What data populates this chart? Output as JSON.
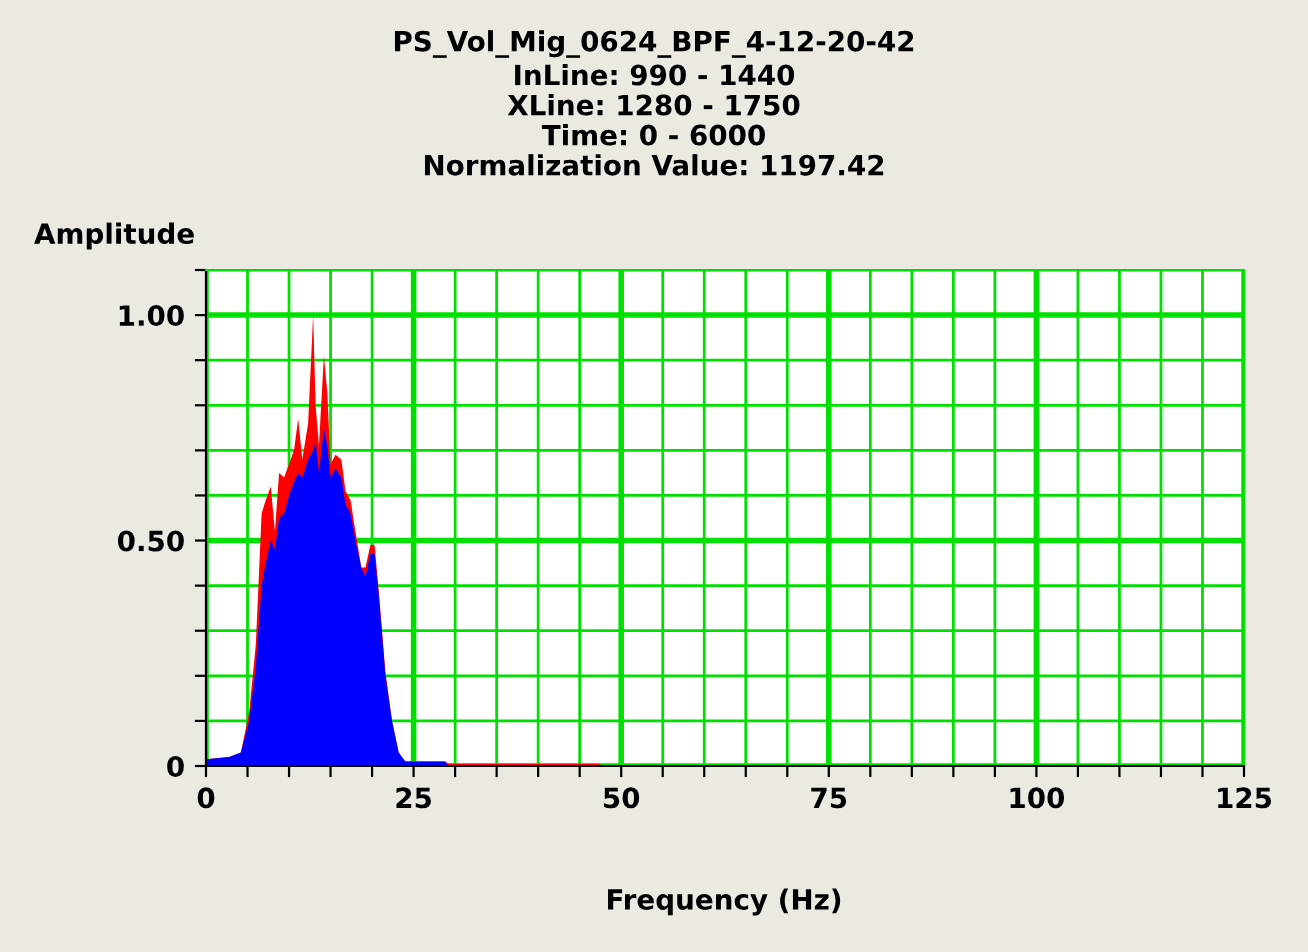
{
  "chart_data": {
    "type": "area",
    "title": "PS_Vol_Mig_0624_BPF_4-12-20-42",
    "subtitle": "InLine: 990 - 1440\nXLine: 1280 - 1750\nTime: 0 - 6000\nNormalization Value: 1197.42",
    "xlabel": "Frequency (Hz)",
    "ylabel": "Amplitude",
    "series": [
      {
        "color": "#ff0000",
        "x": [
          0,
          2.8,
          4.2,
          5.2,
          6.0,
          6.7,
          7.2,
          7.8,
          8.3,
          8.8,
          9.4,
          10.0,
          10.6,
          11.1,
          11.6,
          12.3,
          12.9,
          13.2,
          13.6,
          14.2,
          14.6,
          15.0,
          15.6,
          16.3,
          16.8,
          17.4,
          18.0,
          18.7,
          19.2,
          19.8,
          20.3,
          20.8,
          21.6,
          22.4,
          23.2,
          24.0,
          28.8,
          29.2,
          47.3,
          47.7
        ],
        "values": [
          0.015,
          0.02,
          0.03,
          0.12,
          0.27,
          0.56,
          0.59,
          0.62,
          0.52,
          0.65,
          0.64,
          0.67,
          0.7,
          0.77,
          0.68,
          0.76,
          1.0,
          0.8,
          0.71,
          0.91,
          0.83,
          0.67,
          0.69,
          0.68,
          0.61,
          0.59,
          0.52,
          0.44,
          0.44,
          0.49,
          0.49,
          0.39,
          0.21,
          0.1,
          0.03,
          0.01,
          0.01,
          0.005,
          0.005,
          0
        ]
      },
      {
        "color": "#0000ff",
        "x": [
          0,
          2.8,
          4.2,
          5.2,
          6.0,
          6.7,
          7.2,
          7.8,
          8.3,
          8.8,
          9.4,
          10.0,
          10.6,
          11.1,
          11.6,
          12.3,
          12.9,
          13.2,
          13.6,
          14.2,
          14.6,
          15.0,
          15.6,
          16.3,
          16.8,
          17.4,
          18.0,
          18.7,
          19.2,
          19.8,
          20.3,
          20.8,
          21.6,
          22.4,
          23.2,
          24.0,
          28.8,
          29.2
        ],
        "values": [
          0.015,
          0.02,
          0.03,
          0.1,
          0.22,
          0.4,
          0.45,
          0.5,
          0.48,
          0.55,
          0.56,
          0.6,
          0.63,
          0.65,
          0.64,
          0.68,
          0.7,
          0.72,
          0.65,
          0.75,
          0.71,
          0.64,
          0.66,
          0.64,
          0.58,
          0.56,
          0.5,
          0.44,
          0.42,
          0.47,
          0.47,
          0.38,
          0.2,
          0.1,
          0.03,
          0.01,
          0.01,
          0
        ]
      }
    ],
    "xlim": [
      0,
      125
    ],
    "xticks": [
      0,
      {
        "value": 5,
        "label": null
      },
      {
        "value": 10,
        "label": null
      },
      {
        "value": 15,
        "label": null
      },
      {
        "value": 20,
        "label": null
      },
      25,
      {
        "value": 30,
        "label": null
      },
      {
        "value": 35,
        "label": null
      },
      {
        "value": 40,
        "label": null
      },
      {
        "value": 45,
        "label": null
      },
      50,
      {
        "value": 55,
        "label": null
      },
      {
        "value": 60,
        "label": null
      },
      {
        "value": 65,
        "label": null
      },
      {
        "value": 70,
        "label": null
      },
      75,
      {
        "value": 80,
        "label": null
      },
      {
        "value": 85,
        "label": null
      },
      {
        "value": 90,
        "label": null
      },
      {
        "value": 95,
        "label": null
      },
      100,
      {
        "value": 105,
        "label": null
      },
      {
        "value": 110,
        "label": null
      },
      {
        "value": 115,
        "label": null
      },
      {
        "value": 120,
        "label": null
      },
      125
    ],
    "ylim": [
      0,
      1.1
    ],
    "yticks": [
      0,
      {
        "value": 0.1,
        "label": null
      },
      {
        "value": 0.2,
        "label": null
      },
      {
        "value": 0.3,
        "label": null
      },
      {
        "value": 0.4,
        "label": null
      },
      {
        "value": 0.5,
        "label": "0.50"
      },
      {
        "value": 0.6,
        "label": null
      },
      {
        "value": 0.7,
        "label": null
      },
      {
        "value": 0.8,
        "label": null
      },
      {
        "value": 0.9,
        "label": null
      },
      {
        "value": 1.0,
        "label": "1.00"
      },
      {
        "value": 1.1,
        "label": null
      }
    ],
    "grid": true
  }
}
